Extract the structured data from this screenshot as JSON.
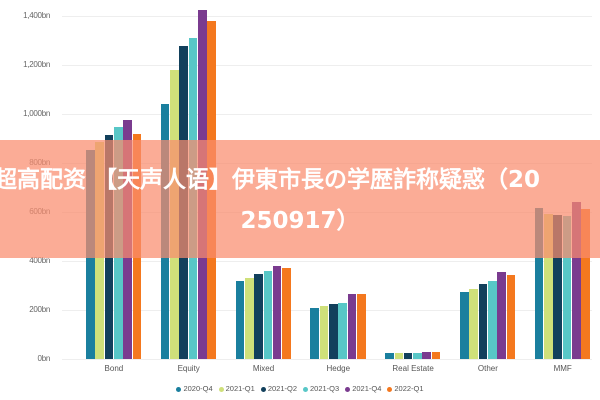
{
  "chart_data": {
    "type": "bar",
    "title": "",
    "xlabel": "",
    "ylabel": "",
    "ylim": [
      0,
      1450
    ],
    "y_ticks": [
      0,
      200,
      400,
      600,
      800,
      1000,
      1200,
      1400
    ],
    "y_tick_labels": [
      "0bn",
      "200bn",
      "400bn",
      "600bn",
      "800bn",
      "1,000bn",
      "1,200bn",
      "1,400bn"
    ],
    "grid": true,
    "legend_position": "bottom",
    "categories": [
      "Bond",
      "Equity",
      "Mixed",
      "Hedge",
      "Real Estate",
      "Other",
      "MMF"
    ],
    "series": [
      {
        "name": "2020-Q4",
        "color": "#1a7f9e",
        "values": [
          855,
          1040,
          318,
          208,
          24,
          273,
          616
        ]
      },
      {
        "name": "2021-Q1",
        "color": "#cfe07a",
        "values": [
          885,
          1180,
          331,
          216,
          25,
          286,
          592
        ]
      },
      {
        "name": "2021-Q2",
        "color": "#12405c",
        "values": [
          914,
          1277,
          347,
          224,
          26,
          306,
          588
        ]
      },
      {
        "name": "2021-Q3",
        "color": "#58c7c7",
        "values": [
          947,
          1310,
          359,
          229,
          26,
          318,
          584
        ]
      },
      {
        "name": "2021-Q4",
        "color": "#7a3b8f",
        "values": [
          975,
          1424,
          380,
          265,
          28,
          355,
          641
        ]
      },
      {
        "name": "2022-Q1",
        "color": "#f4781e",
        "values": [
          918,
          1380,
          372,
          265,
          28,
          343,
          612
        ]
      }
    ]
  },
  "overlay": {
    "line1": "超高配资 【天声人语】伊東市長の学歴詐称疑惑（20",
    "line2": "250917）"
  }
}
